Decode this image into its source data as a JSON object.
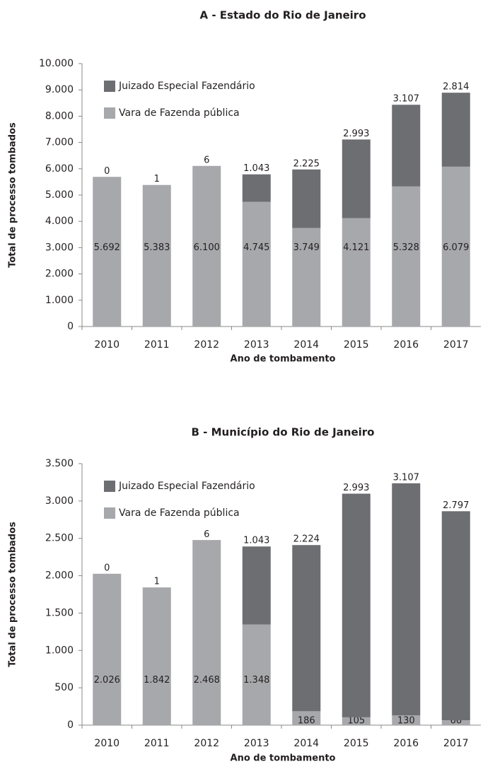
{
  "chart_data": [
    {
      "type": "stacked_bar",
      "title": "A - Estado do Rio de Janeiro",
      "x_label": "Ano de tombamento",
      "y_label": "Total de processo tombados",
      "categories": [
        "2010",
        "2011",
        "2012",
        "2013",
        "2014",
        "2015",
        "2016",
        "2017"
      ],
      "series": [
        {
          "name": "Vara de Fazenda pública",
          "color": "#a7a8ab",
          "values": [
            5692,
            5383,
            6100,
            4745,
            3749,
            4121,
            5328,
            6079
          ],
          "value_labels": [
            "5.692",
            "5.383",
            "6.100",
            "4.745",
            "3.749",
            "4.121",
            "5.328",
            "6.079"
          ]
        },
        {
          "name": "Juizado Especial Fazendário",
          "color": "#6d6e71",
          "values": [
            0,
            1,
            6,
            1043,
            2225,
            2993,
            3107,
            2814
          ],
          "value_labels": [
            "0",
            "1",
            "6",
            "1.043",
            "2.225",
            "2.993",
            "3.107",
            "2.814"
          ]
        }
      ],
      "ylim": [
        0,
        10000
      ],
      "yticks": [
        0,
        {
          "value": 1000,
          "label": "1.000"
        },
        {
          "value": 2000,
          "label": "2.000"
        },
        {
          "value": 3000,
          "label": "3.000"
        },
        {
          "value": 4000,
          "label": "4.000"
        },
        {
          "value": 5000,
          "label": "5.000"
        },
        {
          "value": 6000,
          "label": "6.000"
        },
        {
          "value": 7000,
          "label": "7.000"
        },
        {
          "value": 8000,
          "label": "8.000"
        },
        {
          "value": 9000,
          "label": "9.000"
        },
        {
          "value": 10000,
          "label": "10.000"
        }
      ],
      "legend": "upper left",
      "grid": false
    },
    {
      "type": "stacked_bar",
      "title": "B - Município do Rio de Janeiro",
      "x_label": "Ano de tombamento",
      "y_label": "Total de processo tombados",
      "categories": [
        "2010",
        "2011",
        "2012",
        "2013",
        "2014",
        "2015",
        "2016",
        "2017"
      ],
      "series": [
        {
          "name": "Vara de Fazenda pública",
          "color": "#a7a8ab",
          "values": [
            2026,
            1842,
            2468,
            1348,
            186,
            105,
            130,
            66
          ],
          "value_labels": [
            "2.026",
            "1.842",
            "2.468",
            "1.348",
            "186",
            "105",
            "130",
            "66"
          ]
        },
        {
          "name": "Juizado Especial Fazendário",
          "color": "#6d6e71",
          "values": [
            0,
            1,
            6,
            1043,
            2224,
            2993,
            3107,
            2797
          ],
          "value_labels": [
            "0",
            "1",
            "6",
            "1.043",
            "2.224",
            "2.993",
            "3.107",
            "2.797"
          ]
        }
      ],
      "ylim": [
        0,
        3500
      ],
      "yticks": [
        0,
        500,
        {
          "value": 1000,
          "label": "1.000"
        },
        {
          "value": 1500,
          "label": "1.500"
        },
        {
          "value": 2000,
          "label": "2.000"
        },
        {
          "value": 2500,
          "label": "2.500"
        },
        {
          "value": 3000,
          "label": "3.000"
        },
        {
          "value": 3500,
          "label": "3.500"
        }
      ],
      "legend": "upper left",
      "grid": false
    }
  ]
}
